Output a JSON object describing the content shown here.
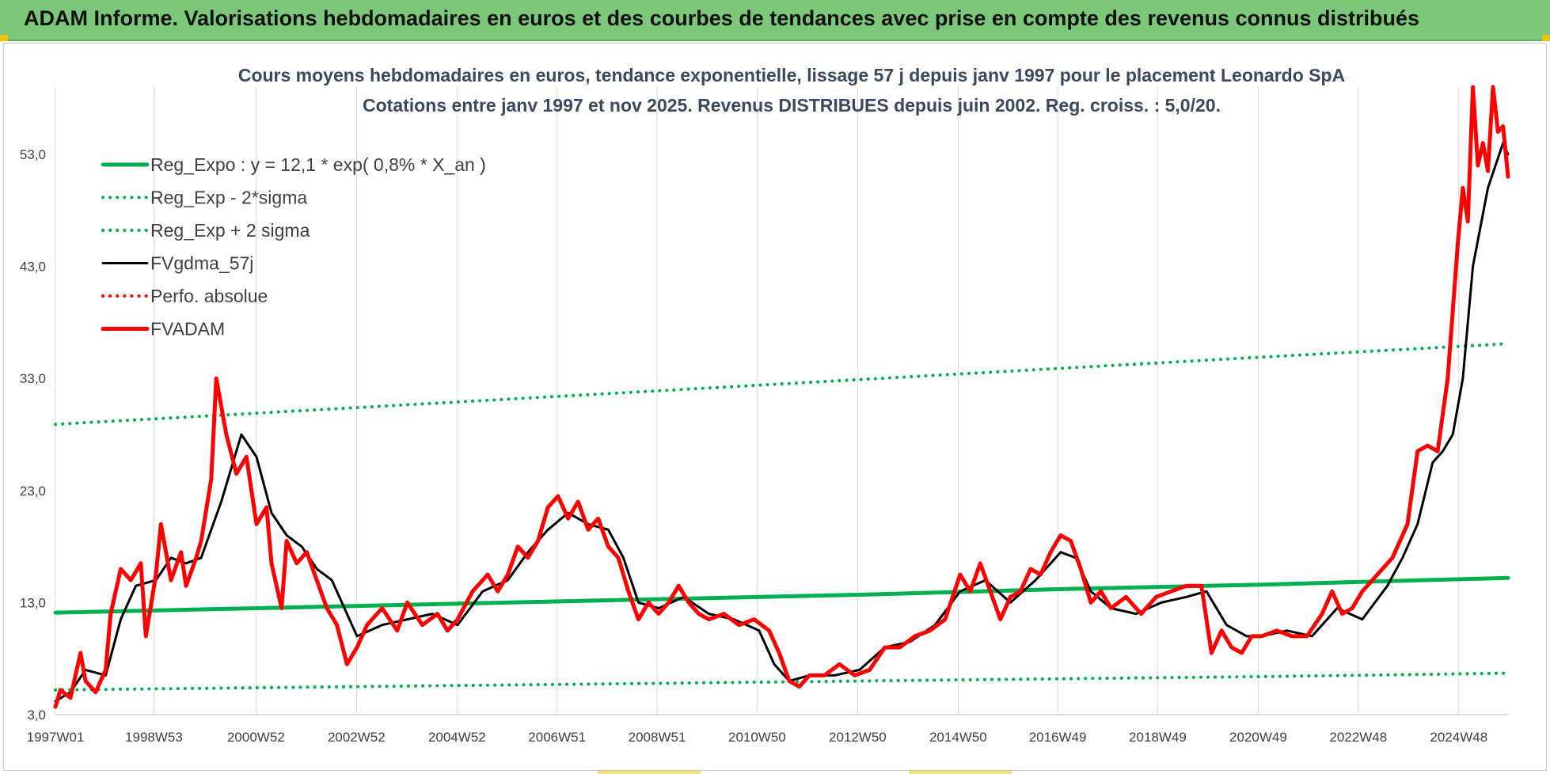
{
  "header": {
    "title": "ADAM Informe. Valorisations hebdomadaires en euros et des courbes de tendances avec prise en compte des revenus connus distribués"
  },
  "colors": {
    "header_bg": "#7dc77b",
    "reg": "#00b050",
    "band": "#00b050",
    "fvgdma": "#000000",
    "perfo": "#ff0000",
    "fvadam": "#ff0000"
  },
  "chart_data": {
    "type": "line",
    "title_line1": "Cours moyens hebdomadaires en euros, tendance exponentielle, lissage 57 j depuis janv 1997 pour le placement Leonardo SpA",
    "title_line2": "Cotations entre janv 1997 et nov 2025. Revenus DISTRIBUES depuis juin 2002. Reg. croiss. : 5,0/20.",
    "ylim": [
      3,
      59
    ],
    "y_ticks": [
      3,
      13,
      23,
      33,
      43,
      53
    ],
    "y_tick_labels": [
      "3,0",
      "13,0",
      "23,0",
      "33,0",
      "43,0",
      "53,0"
    ],
    "xlim": [
      1997.0,
      2025.9
    ],
    "x_ticks": [
      1997.0,
      1998.96,
      2000.99,
      2002.99,
      2004.99,
      2006.98,
      2008.97,
      2010.96,
      2012.96,
      2014.96,
      2016.94,
      2018.93,
      2020.93,
      2022.92,
      2024.92
    ],
    "x_tick_labels": [
      "1997W01",
      "1998W53",
      "2000W52",
      "2002W52",
      "2004W52",
      "2006W51",
      "2008W51",
      "2010W50",
      "2012W50",
      "2014W50",
      "2016W49",
      "2018W49",
      "2020W49",
      "2022W48",
      "2024W48"
    ],
    "grid": "vertical",
    "legend": {
      "position": "top-left",
      "entries": [
        {
          "label": "Reg_Expo : y = 12,1 * exp( 0,8% *  X_an )",
          "color": "#00b050",
          "style": "solid-thick"
        },
        {
          "label": "Reg_Exp - 2*sigma",
          "color": "#00b050",
          "style": "dotted"
        },
        {
          "label": "Reg_Exp + 2 sigma",
          "color": "#00b050",
          "style": "dotted"
        },
        {
          "label": "FVgdma_57j",
          "color": "#000000",
          "style": "solid"
        },
        {
          "label": "Perfo. absolue",
          "color": "#ff0000",
          "style": "dotted"
        },
        {
          "label": "FVADAM",
          "color": "#ff0000",
          "style": "solid-thick"
        }
      ]
    },
    "series": [
      {
        "name": "Reg_Expo : y = 12,1 * exp( 0,8% *  X_an )",
        "x": [
          1997.0,
          2001.0,
          2005.0,
          2009.0,
          2013.0,
          2017.0,
          2021.0,
          2025.9
        ],
        "y": [
          12.1,
          12.5,
          12.9,
          13.3,
          13.7,
          14.2,
          14.6,
          15.2
        ]
      },
      {
        "name": "Reg_Exp - 2*sigma",
        "x": [
          1997.0,
          2001.0,
          2005.0,
          2009.0,
          2013.0,
          2017.0,
          2021.0,
          2025.9
        ],
        "y": [
          5.2,
          5.4,
          5.6,
          5.8,
          6.0,
          6.2,
          6.4,
          6.7
        ]
      },
      {
        "name": "Reg_Exp + 2 sigma",
        "x": [
          1997.0,
          2001.0,
          2005.0,
          2009.0,
          2013.0,
          2017.0,
          2021.0,
          2025.9
        ],
        "y": [
          28.9,
          29.9,
          30.9,
          31.9,
          32.9,
          33.9,
          34.9,
          36.1
        ]
      },
      {
        "name": "FVgdma_57j",
        "x": [
          1997.0,
          1997.3,
          1997.6,
          1998.0,
          1998.3,
          1998.6,
          1999.0,
          1999.3,
          1999.6,
          1999.9,
          2000.3,
          2000.7,
          2001.0,
          2001.3,
          2001.6,
          2001.9,
          2002.2,
          2002.5,
          2003.0,
          2003.5,
          2004.0,
          2004.5,
          2005.0,
          2005.5,
          2006.0,
          2006.4,
          2006.8,
          2007.2,
          2007.6,
          2008.0,
          2008.3,
          2008.6,
          2009.0,
          2009.5,
          2010.0,
          2010.5,
          2011.0,
          2011.3,
          2011.6,
          2012.0,
          2012.5,
          2013.0,
          2013.5,
          2014.0,
          2014.5,
          2015.0,
          2015.5,
          2016.0,
          2016.5,
          2017.0,
          2017.3,
          2017.6,
          2018.0,
          2018.5,
          2019.0,
          2019.5,
          2019.9,
          2020.3,
          2020.7,
          2021.0,
          2021.5,
          2022.0,
          2022.5,
          2023.0,
          2023.5,
          2023.8,
          2024.1,
          2024.4,
          2024.6,
          2024.8,
          2025.0,
          2025.2,
          2025.5,
          2025.8,
          2025.9
        ],
        "y": [
          4.2,
          5.0,
          7.0,
          6.5,
          11.5,
          14.5,
          15.0,
          17.0,
          16.5,
          17.0,
          22.0,
          28.0,
          26.0,
          21.0,
          19.0,
          18.0,
          16.0,
          15.0,
          10.0,
          11.0,
          11.5,
          12.0,
          11.0,
          14.0,
          15.0,
          17.5,
          19.5,
          21.0,
          20.0,
          19.5,
          17.0,
          13.0,
          12.5,
          13.5,
          12.0,
          11.5,
          10.5,
          7.5,
          6.0,
          6.5,
          6.5,
          7.0,
          9.0,
          9.5,
          11.0,
          14.0,
          15.0,
          13.0,
          15.0,
          17.5,
          17.0,
          14.0,
          12.5,
          12.0,
          13.0,
          13.5,
          14.0,
          11.0,
          10.0,
          10.0,
          10.5,
          10.0,
          12.5,
          11.5,
          14.5,
          17.0,
          20.0,
          25.5,
          26.5,
          28.0,
          33.0,
          43.0,
          50.0,
          54.0,
          53.0
        ]
      },
      {
        "name": "FVADAM",
        "x": [
          1997.0,
          1997.1,
          1997.3,
          1997.5,
          1997.6,
          1997.8,
          1998.0,
          1998.1,
          1998.3,
          1998.5,
          1998.7,
          1998.8,
          1999.0,
          1999.1,
          1999.3,
          1999.5,
          1999.6,
          1999.8,
          1999.9,
          2000.1,
          2000.2,
          2000.4,
          2000.6,
          2000.8,
          2001.0,
          2001.2,
          2001.3,
          2001.5,
          2001.6,
          2001.8,
          2002.0,
          2002.2,
          2002.4,
          2002.6,
          2002.8,
          2003.0,
          2003.2,
          2003.5,
          2003.8,
          2004.0,
          2004.3,
          2004.6,
          2004.8,
          2005.0,
          2005.3,
          2005.6,
          2005.8,
          2006.0,
          2006.2,
          2006.4,
          2006.6,
          2006.8,
          2007.0,
          2007.2,
          2007.4,
          2007.6,
          2007.8,
          2008.0,
          2008.2,
          2008.4,
          2008.6,
          2008.8,
          2009.0,
          2009.2,
          2009.4,
          2009.6,
          2009.8,
          2010.0,
          2010.3,
          2010.6,
          2010.9,
          2011.2,
          2011.4,
          2011.6,
          2011.8,
          2012.0,
          2012.3,
          2012.6,
          2012.9,
          2013.2,
          2013.5,
          2013.8,
          2014.1,
          2014.4,
          2014.7,
          2015.0,
          2015.2,
          2015.4,
          2015.6,
          2015.8,
          2016.0,
          2016.2,
          2016.4,
          2016.6,
          2016.8,
          2017.0,
          2017.2,
          2017.4,
          2017.6,
          2017.8,
          2018.0,
          2018.3,
          2018.6,
          2018.9,
          2019.2,
          2019.5,
          2019.8,
          2020.0,
          2020.2,
          2020.4,
          2020.6,
          2020.8,
          2021.0,
          2021.3,
          2021.6,
          2021.9,
          2022.2,
          2022.4,
          2022.6,
          2022.8,
          2023.0,
          2023.3,
          2023.6,
          2023.9,
          2024.1,
          2024.3,
          2024.5,
          2024.7,
          2024.9,
          2025.0,
          2025.1,
          2025.2,
          2025.3,
          2025.4,
          2025.5,
          2025.6,
          2025.7,
          2025.8,
          2025.9
        ],
        "y": [
          3.7,
          5.2,
          4.5,
          8.5,
          6.0,
          5.0,
          7.0,
          12.0,
          16.0,
          15.0,
          16.5,
          10.0,
          15.5,
          20.0,
          15.0,
          17.5,
          14.5,
          17.0,
          18.5,
          24.0,
          33.0,
          28.0,
          24.5,
          26.0,
          20.0,
          21.5,
          16.5,
          12.5,
          18.5,
          16.5,
          17.5,
          15.0,
          12.5,
          11.0,
          7.5,
          9.0,
          11.0,
          12.5,
          10.5,
          13.0,
          11.0,
          12.0,
          10.5,
          11.5,
          14.0,
          15.5,
          14.0,
          15.5,
          18.0,
          17.0,
          18.5,
          21.5,
          22.5,
          20.5,
          22.0,
          19.5,
          20.5,
          18.0,
          17.0,
          14.0,
          11.5,
          13.0,
          12.0,
          13.0,
          14.5,
          13.0,
          12.0,
          11.5,
          12.0,
          11.0,
          11.5,
          10.5,
          8.5,
          6.0,
          5.5,
          6.5,
          6.5,
          7.5,
          6.5,
          7.0,
          9.0,
          9.0,
          10.0,
          10.5,
          11.5,
          15.5,
          14.0,
          16.5,
          14.0,
          11.5,
          13.5,
          14.0,
          16.0,
          15.5,
          17.5,
          19.0,
          18.5,
          16.0,
          13.0,
          14.0,
          12.5,
          13.5,
          12.0,
          13.5,
          14.0,
          14.5,
          14.5,
          8.5,
          10.5,
          9.0,
          8.5,
          10.0,
          10.0,
          10.5,
          10.0,
          10.0,
          12.0,
          14.0,
          12.0,
          12.5,
          14.0,
          15.5,
          17.0,
          20.0,
          26.5,
          27.0,
          26.5,
          33.0,
          45.0,
          50.0,
          47.0,
          59.0,
          52.0,
          54.0,
          51.5,
          59.0,
          55.0,
          55.5,
          51.0
        ]
      }
    ]
  }
}
